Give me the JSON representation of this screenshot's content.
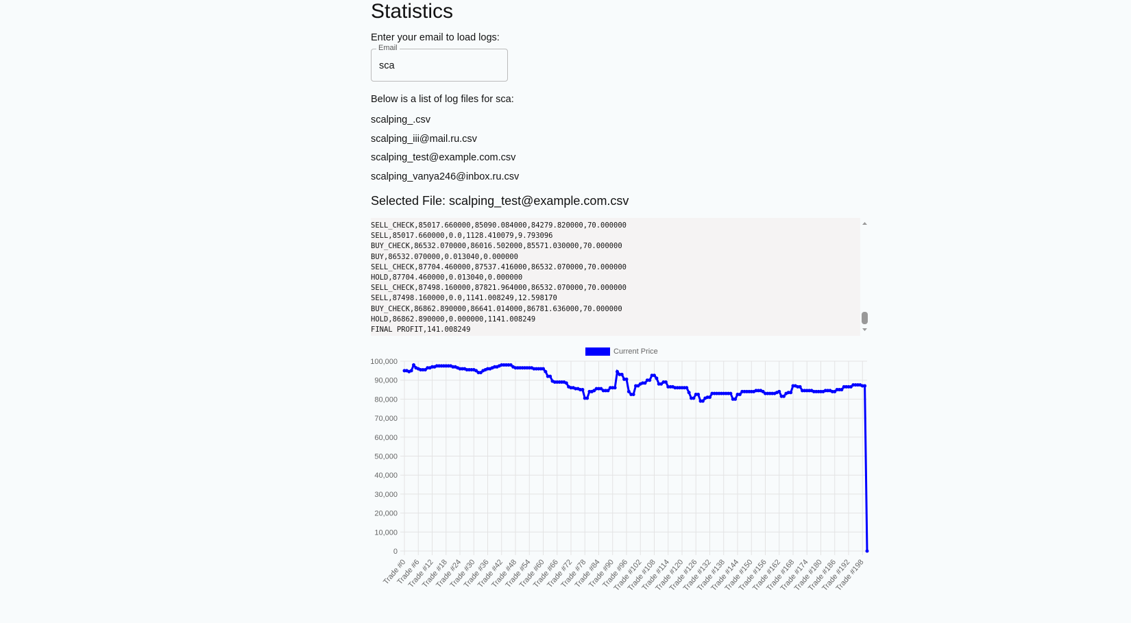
{
  "header": {
    "title": "Statistics"
  },
  "email_prompt": "Enter your email to load logs:",
  "email_field": {
    "label": "Email",
    "value": "sca"
  },
  "files_heading": "Below is a list of log files for sca:",
  "files": [
    "scalping_.csv",
    "scalping_iii@mail.ru.csv",
    "scalping_test@example.com.csv",
    "scalping_vanya246@inbox.ru.csv"
  ],
  "selected_file": "Selected File: scalping_test@example.com.csv",
  "log_lines": [
    "SELL_CHECK,85017.660000,85090.084000,84279.820000,70.000000",
    "SELL,85017.660000,0.0,1128.410079,9.793096",
    "BUY_CHECK,86532.070000,86016.502000,85571.030000,70.000000",
    "BUY,86532.070000,0.013040,0.000000",
    "SELL_CHECK,87704.460000,87537.416000,86532.070000,70.000000",
    "HOLD,87704.460000,0.013040,0.000000",
    "SELL_CHECK,87498.160000,87821.964000,86532.070000,70.000000",
    "SELL,87498.160000,0.0,1141.008249,12.598170",
    "BUY_CHECK,86862.890000,86641.014000,86781.636000,70.000000",
    "HOLD,86862.890000,0.000000,1141.008249",
    "FINAL PROFIT,141.008249"
  ],
  "chart_data": {
    "type": "line",
    "categories": [
      "Trade #0",
      null,
      null,
      null,
      null,
      null,
      "Trade #6",
      null,
      null,
      null,
      null,
      null,
      "Trade #12",
      null,
      null,
      null,
      null,
      null,
      "Trade #18",
      null,
      null,
      null,
      null,
      null,
      "Trade #24",
      null,
      null,
      null,
      null,
      null,
      "Trade #30",
      null,
      null,
      null,
      null,
      null,
      "Trade #36",
      null,
      null,
      null,
      null,
      null,
      "Trade #42",
      null,
      null,
      null,
      null,
      null,
      "Trade #48",
      null,
      null,
      null,
      null,
      null,
      "Trade #54",
      null,
      null,
      null,
      null,
      null,
      "Trade #60",
      null,
      null,
      null,
      null,
      null,
      "Trade #66",
      null,
      null,
      null,
      null,
      null,
      "Trade #72",
      null,
      null,
      null,
      null,
      null,
      "Trade #78",
      null,
      null,
      null,
      null,
      null,
      "Trade #84",
      null,
      null,
      null,
      null,
      null,
      "Trade #90",
      null,
      null,
      null,
      null,
      null,
      "Trade #96",
      null,
      null,
      null,
      null,
      null,
      "Trade #102",
      null,
      null,
      null,
      null,
      null,
      "Trade #108",
      null,
      null,
      null,
      null,
      null,
      "Trade #114",
      null,
      null,
      null,
      null,
      null,
      "Trade #120",
      null,
      null,
      null,
      null,
      null,
      "Trade #126",
      null,
      null,
      null,
      null,
      null,
      "Trade #132",
      null,
      null,
      null,
      null,
      null,
      "Trade #138",
      null,
      null,
      null,
      null,
      null,
      "Trade #144",
      null,
      null,
      null,
      null,
      null,
      "Trade #150",
      null,
      null,
      null,
      null,
      null,
      "Trade #156",
      null,
      null,
      null,
      null,
      null,
      "Trade #162",
      null,
      null,
      null,
      null,
      null,
      "Trade #168",
      null,
      null,
      null,
      null,
      null,
      "Trade #174",
      null,
      null,
      null,
      null,
      null,
      "Trade #180",
      null,
      null,
      null,
      null,
      null,
      "Trade #186",
      null,
      null,
      null,
      null,
      null,
      "Trade #192",
      null,
      null,
      null,
      null,
      null,
      "Trade #198",
      null,
      null
    ],
    "series": [
      {
        "name": "Current Price",
        "color": "#0000ff",
        "values": [
          95000,
          95000,
          94500,
          95000,
          98000,
          96500,
          96000,
          95500,
          95500,
          95500,
          96500,
          96500,
          97000,
          97000,
          97500,
          97500,
          97500,
          97500,
          97500,
          97500,
          97500,
          97000,
          97000,
          96500,
          96000,
          96000,
          96000,
          95500,
          95500,
          95500,
          95500,
          95000,
          94000,
          94000,
          95000,
          95500,
          96000,
          96000,
          96500,
          97000,
          97000,
          97500,
          98000,
          98000,
          98000,
          98000,
          98000,
          97000,
          96500,
          96500,
          96500,
          96500,
          96500,
          96500,
          96500,
          96500,
          96000,
          96000,
          96000,
          96000,
          96000,
          94500,
          92000,
          92000,
          89500,
          89000,
          89000,
          89000,
          89000,
          89000,
          88500,
          86500,
          86000,
          86000,
          85500,
          85500,
          85000,
          85000,
          80500,
          80500,
          84000,
          84000,
          84500,
          85500,
          85500,
          85500,
          84500,
          84500,
          84500,
          86000,
          86000,
          86000,
          94500,
          93000,
          93000,
          90500,
          90500,
          84000,
          82500,
          82500,
          87000,
          87000,
          88000,
          88500,
          88500,
          90000,
          90000,
          92500,
          92500,
          91000,
          88000,
          88000,
          89000,
          89000,
          86500,
          86500,
          86500,
          86000,
          86000,
          86000,
          86000,
          86000,
          86000,
          83500,
          80500,
          80500,
          82500,
          82500,
          79000,
          79000,
          80500,
          81000,
          81000,
          83000,
          83000,
          83000,
          83000,
          83000,
          83000,
          83000,
          83000,
          83000,
          80000,
          80000,
          82500,
          82500,
          84000,
          84000,
          84000,
          84000,
          84000,
          84000,
          84500,
          84500,
          84500,
          84000,
          83000,
          83000,
          83000,
          83000,
          83000,
          83500,
          84000,
          81500,
          81500,
          83000,
          83500,
          83500,
          87000,
          87000,
          86500,
          86500,
          84500,
          84500,
          84500,
          84500,
          84500,
          84000,
          84000,
          84000,
          84000,
          84000,
          84500,
          84500,
          84500,
          84000,
          84000,
          85000,
          85000,
          85000,
          86500,
          86500,
          86500,
          86500,
          87500,
          87500,
          87500,
          87500,
          87000,
          87000,
          0
        ]
      }
    ],
    "ylim": [
      0,
      100000
    ],
    "yticks": [
      0,
      {
        "value": 10000,
        "label": "10,000"
      },
      {
        "value": 20000,
        "label": "20,000"
      },
      {
        "value": 30000,
        "label": "30,000"
      },
      {
        "value": 40000,
        "label": "40,000"
      },
      {
        "value": 50000,
        "label": "50,000"
      },
      {
        "value": 60000,
        "label": "60,000"
      },
      {
        "value": 70000,
        "label": "70,000"
      },
      {
        "value": 80000,
        "label": "80,000"
      },
      {
        "value": 90000,
        "label": "90,000"
      },
      {
        "value": 100000,
        "label": "100,000"
      }
    ],
    "grid": true,
    "legend": "top"
  }
}
